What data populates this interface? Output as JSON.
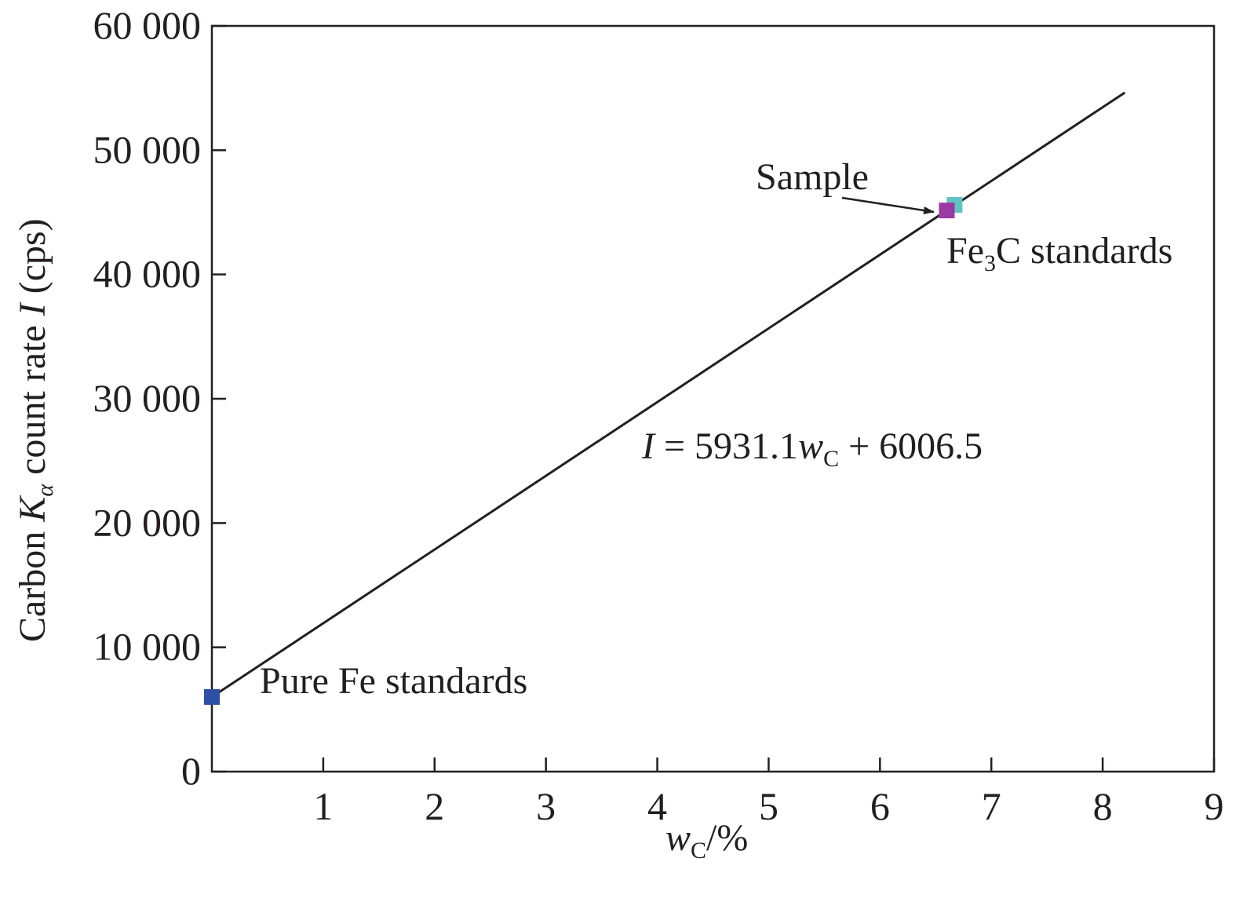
{
  "chart_data": {
    "type": "scatter",
    "xlim": [
      0,
      9
    ],
    "ylim": [
      0,
      60000
    ],
    "x_ticks": [
      1,
      2,
      3,
      4,
      5,
      6,
      7,
      8,
      9
    ],
    "y_ticks": [
      0,
      10000,
      20000,
      30000,
      40000,
      50000,
      60000
    ],
    "x_tick_labels": [
      "1",
      "2",
      "3",
      "4",
      "5",
      "6",
      "7",
      "8",
      "9"
    ],
    "y_tick_labels": [
      "0",
      "10 000",
      "20 000",
      "30 000",
      "40 000",
      "50 000",
      "60 000"
    ],
    "xlabel": {
      "main": "w",
      "sub": "C",
      "suffix": "/%"
    },
    "ylabel": {
      "before": "Carbon ",
      "italic": "K",
      "sub": "α",
      "after": " count rate ",
      "italic2": "I",
      "end": " (cps)"
    },
    "grid": false,
    "series": [
      {
        "points": [
          [
            0,
            6006.5
          ]
        ],
        "color": "#2e4fa3"
      },
      {
        "points": [
          [
            6.67,
            45600
          ]
        ],
        "color": "#5fc3c6"
      },
      {
        "points": [
          [
            6.6,
            45150
          ]
        ],
        "color": "#9b3aa0"
      }
    ],
    "fit_line": {
      "slope": 5931.1,
      "intercept": 6006.5,
      "x_range": [
        0,
        8.2
      ],
      "color": "#231f20"
    },
    "annotations": {
      "equation": {
        "italic_I": "I",
        "mid": " = 5931.1",
        "italic_w": "w",
        "sub": "C",
        "end": " + 6006.5"
      },
      "sample": "Sample",
      "fe3c": {
        "pre": "Fe",
        "sub": "3",
        "post": "C standards"
      },
      "pure_fe": "Pure Fe standards"
    }
  }
}
